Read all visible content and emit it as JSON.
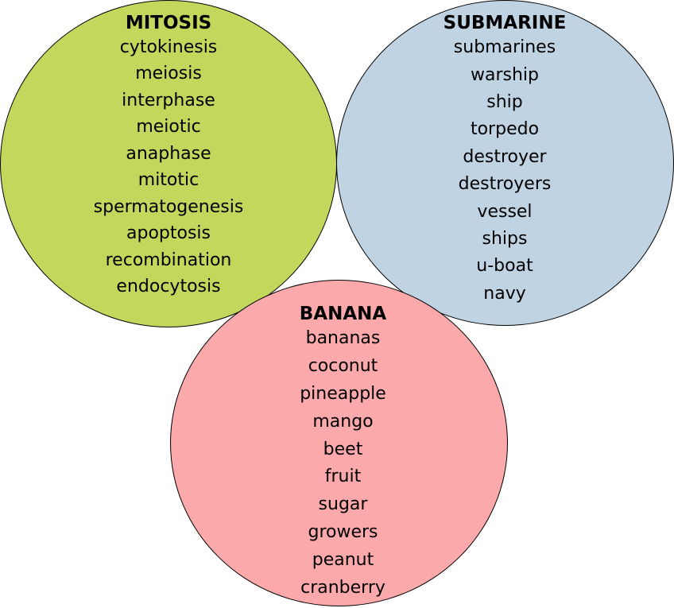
{
  "colors": {
    "mitosis_fill": "#c4d75d",
    "submarine_fill": "#c0d3e3",
    "banana_fill": "#fba9ab",
    "outline": "#000000",
    "text": "#000000"
  },
  "clusters": [
    {
      "id": "mitosis",
      "title": "MITOSIS",
      "words": [
        "cytokinesis",
        "meiosis",
        "interphase",
        "meiotic",
        "anaphase",
        "mitotic",
        "spermatogenesis",
        "apoptosis",
        "recombination",
        "endocytosis"
      ]
    },
    {
      "id": "submarine",
      "title": "SUBMARINE",
      "words": [
        "submarines",
        "warship",
        "ship",
        "torpedo",
        "destroyer",
        "destroyers",
        "vessel",
        "ships",
        "u-boat",
        "navy"
      ]
    },
    {
      "id": "banana",
      "title": "BANANA",
      "words": [
        "bananas",
        "coconut",
        "pineapple",
        "mango",
        "beet",
        "fruit",
        "sugar",
        "growers",
        "peanut",
        "cranberry"
      ]
    }
  ]
}
